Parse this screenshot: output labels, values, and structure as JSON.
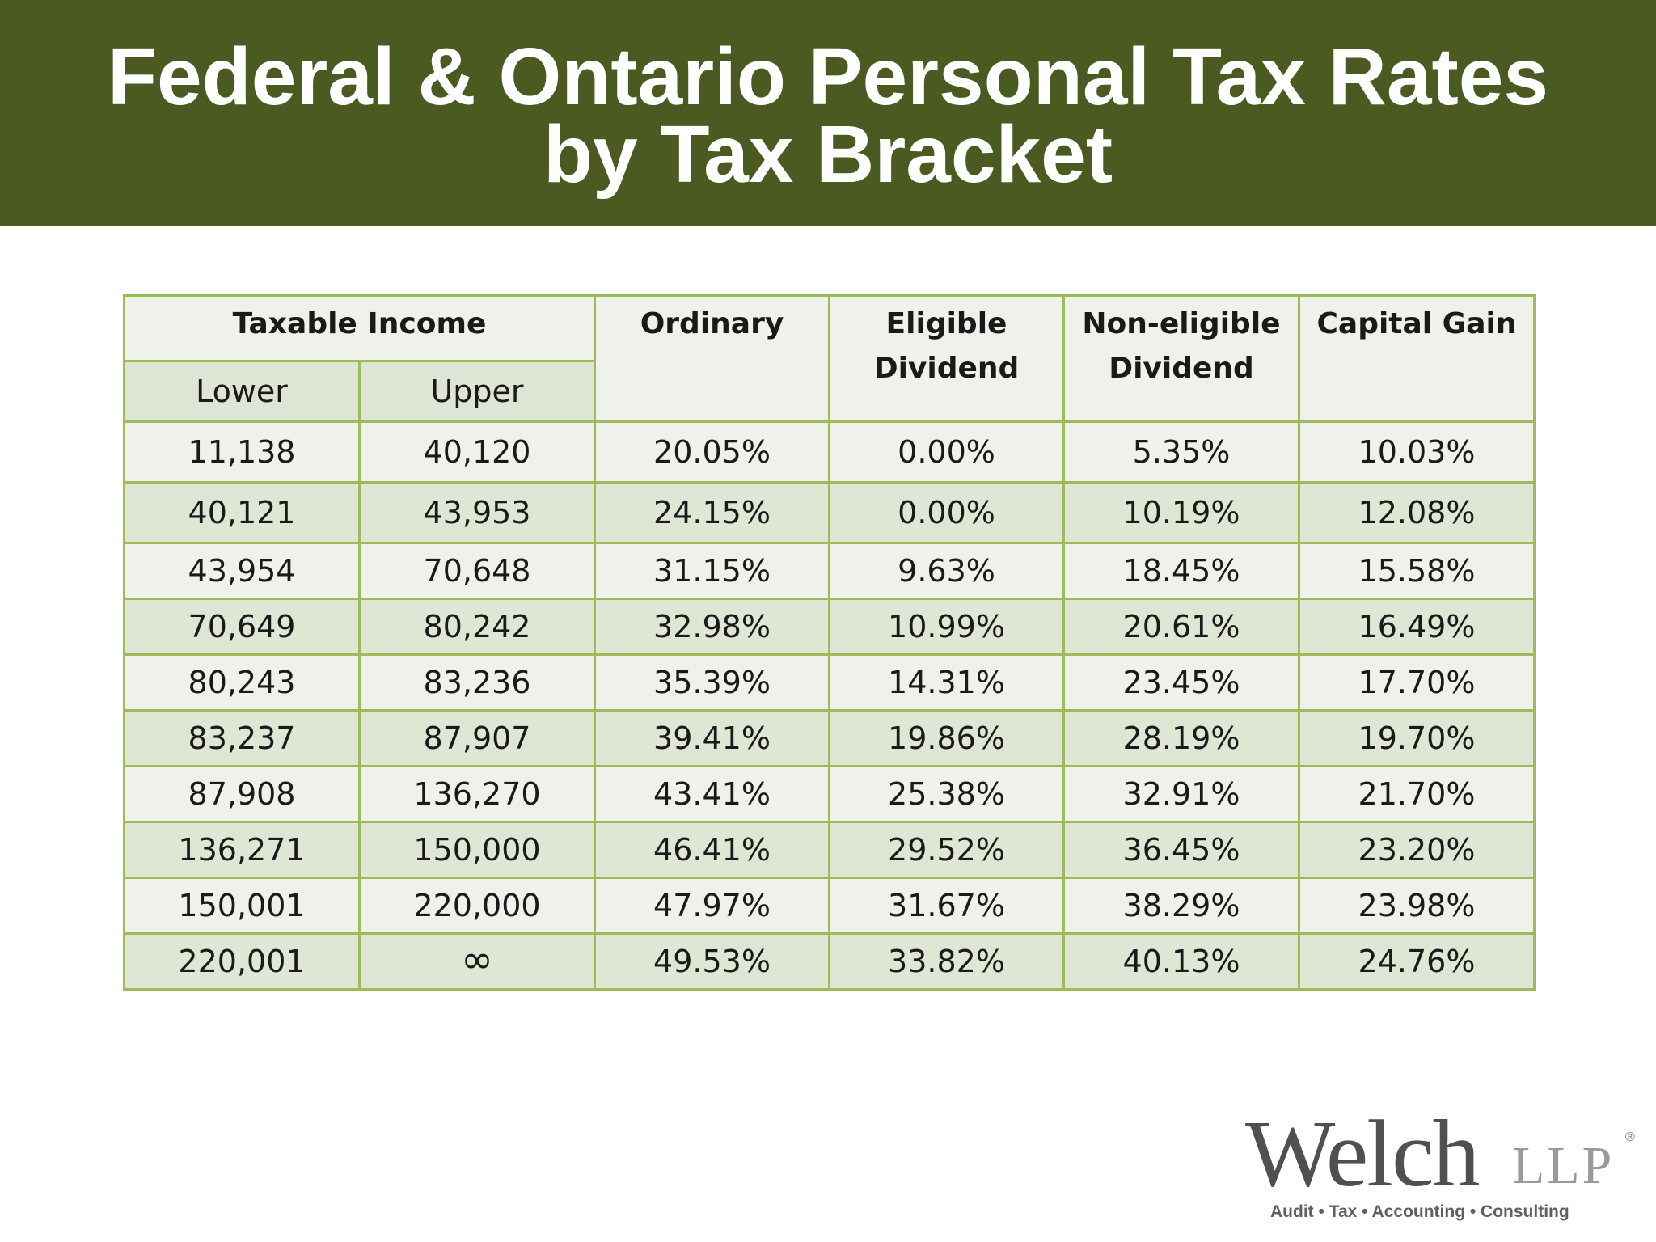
{
  "title": {
    "line1": "Federal & Ontario Personal Tax Rates",
    "line2": "by Tax Bracket"
  },
  "table": {
    "headers": {
      "taxable_income": "Taxable Income",
      "lower": "Lower",
      "upper": "Upper",
      "ordinary": "Ordinary",
      "eligible_line1": "Eligible",
      "eligible_line2": "Dividend",
      "noneligible_line1": "Non-eligible",
      "noneligible_line2": "Dividend",
      "capital_gain": "Capital Gain"
    },
    "rows": [
      {
        "lower": "11,138",
        "upper": "40,120",
        "ordinary": "20.05%",
        "eligible": "0.00%",
        "noneligible": "5.35%",
        "capital_gain": "10.03%"
      },
      {
        "lower": "40,121",
        "upper": "43,953",
        "ordinary": "24.15%",
        "eligible": "0.00%",
        "noneligible": "10.19%",
        "capital_gain": "12.08%"
      },
      {
        "lower": "43,954",
        "upper": "70,648",
        "ordinary": "31.15%",
        "eligible": "9.63%",
        "noneligible": "18.45%",
        "capital_gain": "15.58%"
      },
      {
        "lower": "70,649",
        "upper": "80,242",
        "ordinary": "32.98%",
        "eligible": "10.99%",
        "noneligible": "20.61%",
        "capital_gain": "16.49%"
      },
      {
        "lower": "80,243",
        "upper": "83,236",
        "ordinary": "35.39%",
        "eligible": "14.31%",
        "noneligible": "23.45%",
        "capital_gain": "17.70%"
      },
      {
        "lower": "83,237",
        "upper": "87,907",
        "ordinary": "39.41%",
        "eligible": "19.86%",
        "noneligible": "28.19%",
        "capital_gain": "19.70%"
      },
      {
        "lower": "87,908",
        "upper": "136,270",
        "ordinary": "43.41%",
        "eligible": "25.38%",
        "noneligible": "32.91%",
        "capital_gain": "21.70%"
      },
      {
        "lower": "136,271",
        "upper": "150,000",
        "ordinary": "46.41%",
        "eligible": "29.52%",
        "noneligible": "36.45%",
        "capital_gain": "23.20%"
      },
      {
        "lower": "150,001",
        "upper": "220,000",
        "ordinary": "47.97%",
        "eligible": "31.67%",
        "noneligible": "38.29%",
        "capital_gain": "23.98%"
      },
      {
        "lower": "220,001",
        "upper": "∞",
        "ordinary": "49.53%",
        "eligible": "33.82%",
        "noneligible": "40.13%",
        "capital_gain": "24.76%"
      }
    ]
  },
  "logo": {
    "name": "Welch",
    "suffix": "LLP",
    "registered": "®",
    "tagline": "Audit  •  Tax  •  Accounting  •  Consulting"
  },
  "colors": {
    "title_bar": "#4b5a20",
    "table_border": "#9dbb5a",
    "row_light": "#eff1ea",
    "row_dark": "#dfe6d4"
  }
}
